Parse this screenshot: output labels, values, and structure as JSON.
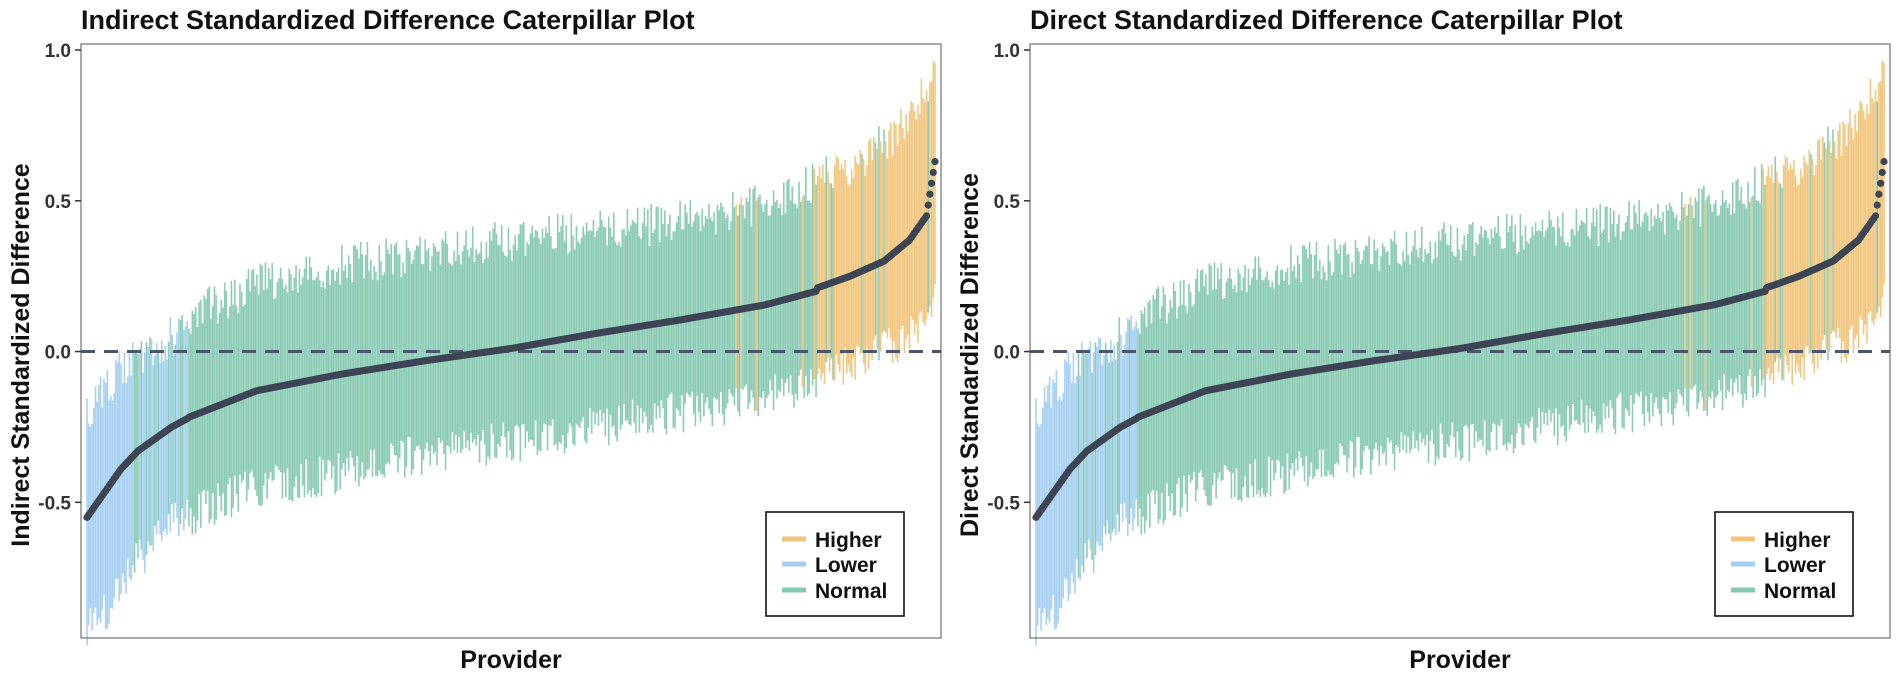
{
  "chart_data": [
    {
      "type": "caterpillar",
      "title": "Indirect Standardized Difference Caterpillar Plot",
      "xlabel": "Provider",
      "ylabel": "Indirect Standardized Difference",
      "ylim": [
        -0.95,
        1.02
      ],
      "yticks": [
        -0.5,
        0.0,
        0.5,
        1.0
      ],
      "ytick_labels": [
        "-0.5",
        "0.0",
        "0.5",
        "1.0"
      ],
      "reference_line": 0,
      "grid": false,
      "legend": {
        "placement": "bottom-right",
        "entries": [
          {
            "label": "Higher",
            "color": "#f0c47a"
          },
          {
            "label": "Lower",
            "color": "#a3cff2"
          },
          {
            "label": "Normal",
            "color": "#86c9b1"
          }
        ]
      },
      "provider_count": 500,
      "point_color": "#3d4554",
      "series": [
        {
          "name": "Normal",
          "color": "#86c9b1",
          "x": [
            0.05,
            0.1,
            0.2,
            0.3,
            0.4,
            0.5,
            0.6,
            0.7,
            0.8,
            0.86
          ],
          "estimate": [
            -0.3,
            -0.24,
            -0.13,
            -0.075,
            -0.03,
            0.01,
            0.06,
            0.105,
            0.155,
            0.2
          ],
          "lower": [
            -0.58,
            -0.5,
            -0.38,
            -0.33,
            -0.27,
            -0.23,
            -0.18,
            -0.13,
            -0.08,
            -0.04
          ],
          "upper": [
            0.0,
            0.02,
            0.15,
            0.22,
            0.25,
            0.3,
            0.33,
            0.36,
            0.42,
            0.5
          ]
        },
        {
          "name": "Lower",
          "color": "#a3cff2",
          "x": [
            0.0,
            0.02,
            0.04,
            0.06,
            0.08,
            0.1,
            0.12
          ],
          "estimate": [
            -0.55,
            -0.47,
            -0.39,
            -0.33,
            -0.29,
            -0.25,
            -0.22
          ],
          "lower": [
            -0.86,
            -0.8,
            -0.7,
            -0.62,
            -0.56,
            -0.5,
            -0.46
          ],
          "upper": [
            -0.27,
            -0.21,
            -0.13,
            -0.08,
            -0.05,
            -0.02,
            0.0
          ]
        },
        {
          "name": "Higher",
          "color": "#f0c47a",
          "x": [
            0.86,
            0.9,
            0.94,
            0.97,
            0.99,
            1.0
          ],
          "estimate": [
            0.21,
            0.25,
            0.3,
            0.37,
            0.45,
            0.63
          ],
          "lower": [
            0.0,
            0.03,
            0.08,
            0.12,
            0.18,
            0.3
          ],
          "upper": [
            0.5,
            0.55,
            0.62,
            0.7,
            0.8,
            0.95
          ]
        }
      ]
    },
    {
      "type": "caterpillar",
      "title": "Direct Standardized Difference Caterpillar Plot",
      "xlabel": "Provider",
      "ylabel": "Direct Standardized Difference",
      "ylim": [
        -0.95,
        1.02
      ],
      "yticks": [
        -0.5,
        0.0,
        0.5,
        1.0
      ],
      "ytick_labels": [
        "-0.5",
        "0.0",
        "0.5",
        "1.0"
      ],
      "reference_line": 0,
      "grid": false,
      "legend": {
        "placement": "bottom-right",
        "entries": [
          {
            "label": "Higher",
            "color": "#f0c47a"
          },
          {
            "label": "Lower",
            "color": "#a3cff2"
          },
          {
            "label": "Normal",
            "color": "#86c9b1"
          }
        ]
      },
      "provider_count": 500,
      "point_color": "#3d4554",
      "series": [
        {
          "name": "Normal",
          "color": "#86c9b1",
          "x": [
            0.05,
            0.1,
            0.2,
            0.3,
            0.4,
            0.5,
            0.6,
            0.7,
            0.8,
            0.86
          ],
          "estimate": [
            -0.3,
            -0.24,
            -0.13,
            -0.075,
            -0.03,
            0.01,
            0.06,
            0.105,
            0.155,
            0.2
          ],
          "lower": [
            -0.58,
            -0.5,
            -0.38,
            -0.33,
            -0.27,
            -0.23,
            -0.18,
            -0.13,
            -0.08,
            -0.04
          ],
          "upper": [
            0.0,
            0.02,
            0.15,
            0.22,
            0.25,
            0.3,
            0.33,
            0.36,
            0.42,
            0.5
          ]
        },
        {
          "name": "Lower",
          "color": "#a3cff2",
          "x": [
            0.0,
            0.02,
            0.04,
            0.06,
            0.08,
            0.1,
            0.12
          ],
          "estimate": [
            -0.55,
            -0.47,
            -0.39,
            -0.33,
            -0.29,
            -0.25,
            -0.22
          ],
          "lower": [
            -0.86,
            -0.8,
            -0.7,
            -0.62,
            -0.56,
            -0.5,
            -0.46
          ],
          "upper": [
            -0.27,
            -0.21,
            -0.13,
            -0.08,
            -0.05,
            -0.02,
            0.0
          ]
        },
        {
          "name": "Higher",
          "color": "#f0c47a",
          "x": [
            0.86,
            0.9,
            0.94,
            0.97,
            0.99,
            1.0
          ],
          "estimate": [
            0.21,
            0.25,
            0.3,
            0.37,
            0.45,
            0.63
          ],
          "lower": [
            0.0,
            0.03,
            0.08,
            0.12,
            0.18,
            0.3
          ],
          "upper": [
            0.5,
            0.55,
            0.62,
            0.7,
            0.8,
            0.95
          ]
        }
      ]
    }
  ]
}
